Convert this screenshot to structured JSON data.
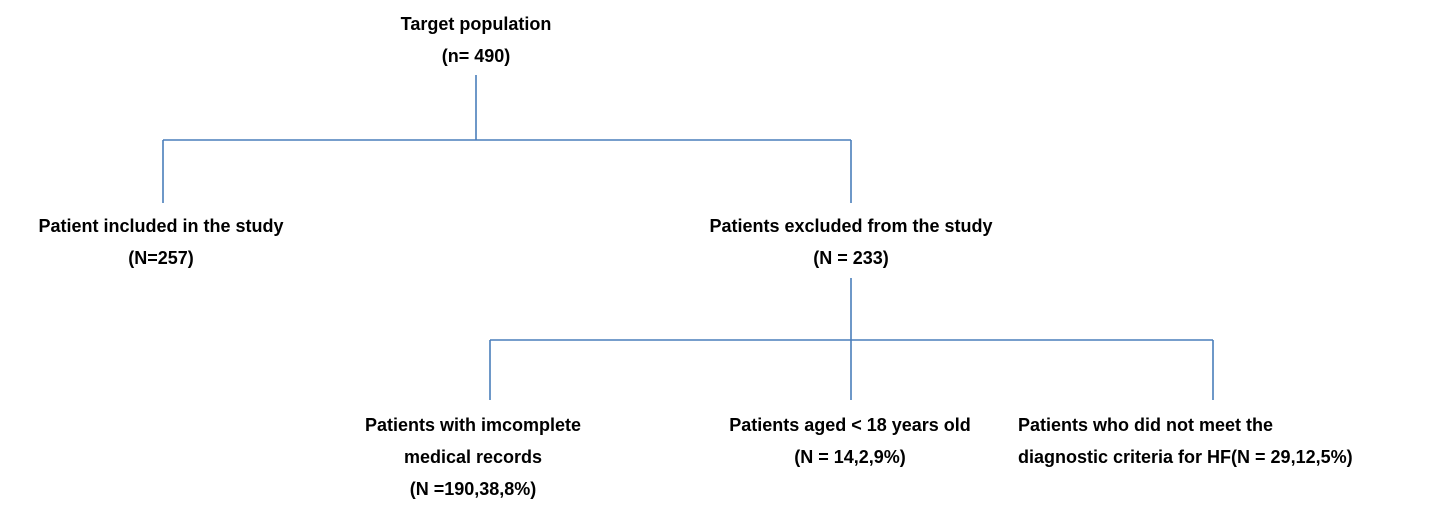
{
  "nodes": [
    {
      "lines": [
        "Target population",
        "(n= 490)"
      ]
    },
    {
      "lines": [
        "Patient included in the study",
        "(N=257)"
      ]
    },
    {
      "lines": [
        "Patients excluded from the study",
        "(N = 233)"
      ]
    },
    {
      "lines": [
        "Patients with imcomplete",
        "medical records",
        "(N =190,38,8%)"
      ]
    },
    {
      "lines": [
        "Patients aged < 18 years old",
        "(N = 14,2,9%)"
      ]
    },
    {
      "lines": [
        "Patients who did not meet the",
        "diagnostic criteria for HF(N = 29,12,5%)"
      ]
    }
  ]
}
